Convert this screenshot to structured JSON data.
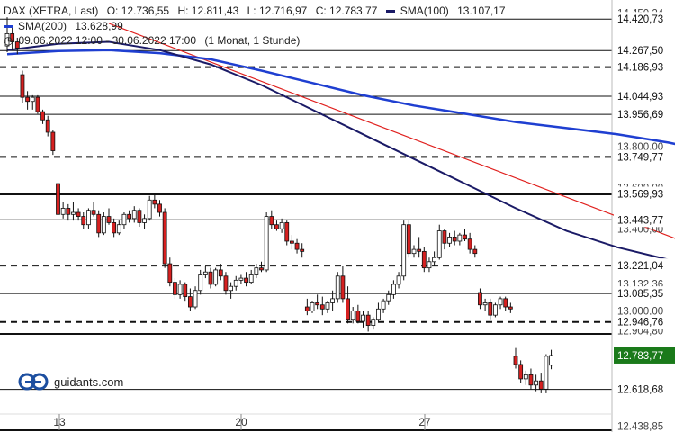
{
  "header": {
    "symbol": "DAX (XETRA, Last)",
    "open": "O: 12.736,55",
    "high": "H: 12.811,43",
    "low": "L: 12.716,97",
    "close": "C: 12.783,77",
    "sma100_label": "SMA(100)",
    "sma100_value": "13.107,17",
    "sma200_label": "SMA(200)",
    "sma200_value": "13.628,99",
    "period": "09.06.2022 12:00 - 30.06.2022 17:00",
    "interval": "(1 Monat, 1 Stunde)"
  },
  "logo_text": "guidants.com",
  "colors": {
    "sma100": "#1a1a66",
    "sma200": "#1f3fd1",
    "trendline": "#e0201e",
    "up_candle": "#ffffff",
    "down_candle": "#d62020",
    "current_price_bg": "#1a7a1a"
  },
  "chart_data": {
    "type": "candlestick",
    "x_tick_labels": [
      "13",
      "20",
      "27"
    ],
    "y_range": [
      12420,
      14470
    ],
    "price_levels": [
      {
        "label": "14.420,73",
        "value": 14420.73,
        "style": "solid"
      },
      {
        "label": "14.267,50",
        "value": 14267.5,
        "style": "solid"
      },
      {
        "label": "14.186,93",
        "value": 14186.93,
        "style": "dashed"
      },
      {
        "label": "14.044,93",
        "value": 14044.93,
        "style": "solid"
      },
      {
        "label": "13.956,69",
        "value": 13956.69,
        "style": "solid"
      },
      {
        "label": "13.749,77",
        "value": 13749.77,
        "style": "dashed"
      },
      {
        "label": "13.569,93",
        "value": 13569.93,
        "style": "thick"
      },
      {
        "label": "13.443,77",
        "value": 13443.77,
        "style": "solid"
      },
      {
        "label": "13.221,04",
        "value": 13221.04,
        "style": "dashed"
      },
      {
        "label": "13.085,35",
        "value": 13085.35,
        "style": "solid"
      },
      {
        "label": "12.946,76",
        "value": 12946.76,
        "style": "dashed"
      },
      {
        "label": "12.618,68",
        "value": 12618.68,
        "style": "solid"
      }
    ],
    "axis_ticks": [
      {
        "label": "14.450,24",
        "value": 14450.24
      },
      {
        "label": "13.800,00",
        "value": 13800.0
      },
      {
        "label": "13.600,00",
        "value": 13600.0
      },
      {
        "label": "13.400,00",
        "value": 13400.0
      },
      {
        "label": "13.132,36",
        "value": 13132.36
      },
      {
        "label": "13.000,00",
        "value": 13000.0
      },
      {
        "label": "12.904,80",
        "value": 12904.8
      },
      {
        "label": "12.438,85",
        "value": 12438.85
      }
    ],
    "current_price": {
      "label": "12.783,77",
      "value": 12783.77
    },
    "candles": [
      [
        14290,
        14430,
        14260,
        14350
      ],
      [
        14350,
        14380,
        14270,
        14310
      ],
      [
        14310,
        14330,
        14250,
        14280
      ],
      [
        14150,
        14170,
        14010,
        14040
      ],
      [
        14040,
        14070,
        13980,
        14020
      ],
      [
        14020,
        14050,
        13980,
        14040
      ],
      [
        14040,
        14050,
        13960,
        13970
      ],
      [
        13970,
        13980,
        13910,
        13930
      ],
      [
        13930,
        13950,
        13850,
        13870
      ],
      [
        13870,
        13880,
        13760,
        13780
      ],
      [
        13620,
        13660,
        13450,
        13470
      ],
      [
        13470,
        13530,
        13450,
        13500
      ],
      [
        13500,
        13520,
        13440,
        13470
      ],
      [
        13470,
        13530,
        13440,
        13480
      ],
      [
        13480,
        13500,
        13440,
        13460
      ],
      [
        13460,
        13480,
        13400,
        13420
      ],
      [
        13420,
        13500,
        13400,
        13490
      ],
      [
        13490,
        13530,
        13460,
        13470
      ],
      [
        13470,
        13490,
        13360,
        13380
      ],
      [
        13380,
        13480,
        13370,
        13460
      ],
      [
        13460,
        13500,
        13420,
        13430
      ],
      [
        13430,
        13450,
        13360,
        13380
      ],
      [
        13380,
        13440,
        13370,
        13420
      ],
      [
        13420,
        13480,
        13400,
        13470
      ],
      [
        13470,
        13490,
        13430,
        13450
      ],
      [
        13450,
        13510,
        13430,
        13490
      ],
      [
        13490,
        13500,
        13410,
        13430
      ],
      [
        13430,
        13470,
        13400,
        13450
      ],
      [
        13450,
        13560,
        13440,
        13540
      ],
      [
        13540,
        13570,
        13500,
        13520
      ],
      [
        13520,
        13540,
        13460,
        13480
      ],
      [
        13480,
        13500,
        13210,
        13230
      ],
      [
        13230,
        13260,
        13120,
        13140
      ],
      [
        13140,
        13160,
        13060,
        13080
      ],
      [
        13080,
        13150,
        13060,
        13130
      ],
      [
        13130,
        13140,
        13050,
        13070
      ],
      [
        13070,
        13110,
        13000,
        13020
      ],
      [
        13020,
        13120,
        13010,
        13100
      ],
      [
        13100,
        13200,
        13080,
        13180
      ],
      [
        13180,
        13220,
        13160,
        13190
      ],
      [
        13190,
        13210,
        13110,
        13130
      ],
      [
        13130,
        13210,
        13120,
        13200
      ],
      [
        13200,
        13230,
        13150,
        13170
      ],
      [
        13170,
        13190,
        13080,
        13100
      ],
      [
        13100,
        13140,
        13060,
        13120
      ],
      [
        13120,
        13170,
        13100,
        13150
      ],
      [
        13150,
        13180,
        13130,
        13160
      ],
      [
        13160,
        13190,
        13120,
        13140
      ],
      [
        13140,
        13200,
        13130,
        13180
      ],
      [
        13180,
        13230,
        13160,
        13210
      ],
      [
        13210,
        13240,
        13190,
        13200
      ],
      [
        13200,
        13480,
        13190,
        13460
      ],
      [
        13460,
        13490,
        13400,
        13420
      ],
      [
        13420,
        13440,
        13390,
        13400
      ],
      [
        13400,
        13450,
        13380,
        13430
      ],
      [
        13430,
        13440,
        13320,
        13340
      ],
      [
        13340,
        13370,
        13300,
        13330
      ],
      [
        13330,
        13350,
        13280,
        13300
      ],
      [
        13300,
        13330,
        13260,
        13290
      ],
      [
        13020,
        13060,
        12980,
        13000
      ],
      [
        13000,
        13050,
        12990,
        13040
      ],
      [
        13040,
        13080,
        13010,
        13030
      ],
      [
        13030,
        13070,
        12980,
        13010
      ],
      [
        13010,
        13050,
        12990,
        13040
      ],
      [
        13040,
        13100,
        13000,
        13060
      ],
      [
        13060,
        13190,
        13040,
        13170
      ],
      [
        13170,
        13220,
        13040,
        13060
      ],
      [
        13060,
        13120,
        12940,
        12960
      ],
      [
        12960,
        13020,
        12940,
        13000
      ],
      [
        13000,
        13030,
        12940,
        12950
      ],
      [
        12950,
        13000,
        12920,
        12980
      ],
      [
        12980,
        13000,
        12900,
        12930
      ],
      [
        12930,
        12970,
        12910,
        12960
      ],
      [
        12960,
        13040,
        12950,
        13010
      ],
      [
        13010,
        13060,
        12990,
        13050
      ],
      [
        13050,
        13100,
        13030,
        13080
      ],
      [
        13080,
        13150,
        13060,
        13130
      ],
      [
        13130,
        13190,
        13110,
        13170
      ],
      [
        13170,
        13440,
        13150,
        13420
      ],
      [
        13420,
        13440,
        13260,
        13280
      ],
      [
        13280,
        13320,
        13260,
        13300
      ],
      [
        13300,
        13360,
        13260,
        13290
      ],
      [
        13290,
        13310,
        13190,
        13210
      ],
      [
        13210,
        13260,
        13190,
        13240
      ],
      [
        13240,
        13290,
        13220,
        13260
      ],
      [
        13260,
        13420,
        13250,
        13390
      ],
      [
        13390,
        13400,
        13300,
        13330
      ],
      [
        13330,
        13380,
        13310,
        13360
      ],
      [
        13360,
        13390,
        13320,
        13340
      ],
      [
        13340,
        13380,
        13320,
        13370
      ],
      [
        13370,
        13400,
        13340,
        13350
      ],
      [
        13350,
        13380,
        13280,
        13300
      ],
      [
        13300,
        13320,
        13260,
        13280
      ],
      [
        13090,
        13110,
        13010,
        13030
      ],
      [
        13030,
        13060,
        13000,
        13040
      ],
      [
        13040,
        13060,
        12960,
        12980
      ],
      [
        12980,
        13040,
        12970,
        13030
      ],
      [
        13030,
        13070,
        13010,
        13060
      ],
      [
        13060,
        13070,
        13000,
        13020
      ],
      [
        13020,
        13040,
        12990,
        13010
      ],
      [
        12780,
        12820,
        12720,
        12740
      ],
      [
        12740,
        12760,
        12650,
        12670
      ],
      [
        12670,
        12710,
        12640,
        12690
      ],
      [
        12690,
        12720,
        12620,
        12640
      ],
      [
        12640,
        12690,
        12610,
        12660
      ],
      [
        12660,
        12700,
        12600,
        12620
      ],
      [
        12620,
        12790,
        12600,
        12780
      ],
      [
        12736.55,
        12811.43,
        12716.97,
        12783.77
      ]
    ],
    "sma100": [
      [
        0,
        14270
      ],
      [
        10,
        14300
      ],
      [
        20,
        14310
      ],
      [
        30,
        14270
      ],
      [
        40,
        14200
      ],
      [
        50,
        14100
      ],
      [
        60,
        13980
      ],
      [
        70,
        13860
      ],
      [
        80,
        13740
      ],
      [
        90,
        13620
      ],
      [
        100,
        13500
      ],
      [
        110,
        13390
      ],
      [
        120,
        13310
      ],
      [
        130,
        13250
      ],
      [
        135,
        13230
      ],
      [
        140,
        13220
      ],
      [
        145,
        13190
      ],
      [
        150,
        13160
      ],
      [
        155,
        13120
      ]
    ],
    "sma200": [
      [
        0,
        14250
      ],
      [
        10,
        14265
      ],
      [
        20,
        14270
      ],
      [
        30,
        14255
      ],
      [
        40,
        14225
      ],
      [
        50,
        14170
      ],
      [
        60,
        14110
      ],
      [
        70,
        14050
      ],
      [
        80,
        14000
      ],
      [
        90,
        13960
      ],
      [
        100,
        13920
      ],
      [
        110,
        13890
      ],
      [
        120,
        13860
      ],
      [
        130,
        13820
      ],
      [
        140,
        13770
      ],
      [
        150,
        13690
      ],
      [
        155,
        13650
      ]
    ],
    "trendline": [
      [
        20,
        14400
      ],
      [
        170,
        12990
      ]
    ]
  }
}
